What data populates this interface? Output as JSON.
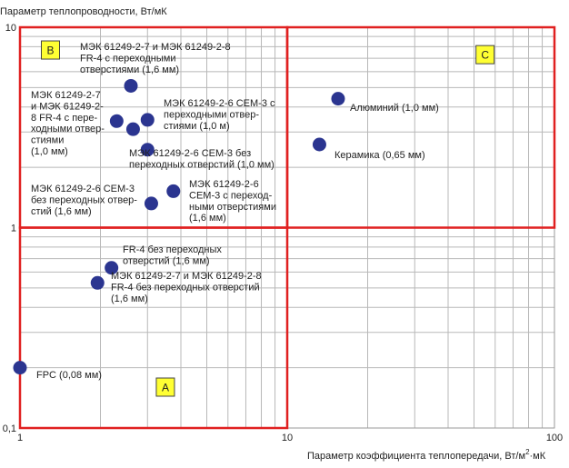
{
  "chart_data": {
    "type": "scatter",
    "title": "",
    "ylabel": "Параметр теплопроводности, Вт/мК",
    "xlabel_prefix": "Параметр коэффициента теплопередачи, Вт/м",
    "xlabel_sup": "2",
    "xlabel_suffix": "·мК",
    "x_scale": "log",
    "y_scale": "log",
    "xlim": [
      1,
      100
    ],
    "ylim": [
      0.1,
      10
    ],
    "grid": true,
    "x_ticks": [
      {
        "value": 1,
        "label": "1"
      },
      {
        "value": 10,
        "label": "10"
      },
      {
        "value": 100,
        "label": "100"
      }
    ],
    "y_ticks": [
      {
        "value": 0.1,
        "label": "0,1"
      },
      {
        "value": 1,
        "label": "1"
      },
      {
        "value": 10,
        "label": "10"
      }
    ],
    "points": [
      {
        "x": 1.0,
        "y": 0.2,
        "label": [
          "FPC (0,08 мм)"
        ],
        "anchor": "right"
      },
      {
        "x": 2.2,
        "y": 0.63,
        "label": [
          "FR-4 без переходных",
          "отверстий (1,6 мм)"
        ],
        "anchor": "right"
      },
      {
        "x": 1.95,
        "y": 0.53,
        "label": [
          "МЭК 61249-2-7 и МЭК 61249-2-8",
          "FR-4 без переходных отверстий",
          "(1,6 мм)"
        ],
        "anchor": "right"
      },
      {
        "x": 2.6,
        "y": 5.1,
        "label": [
          "МЭК 61249-2-7 и МЭК 61249-2-8",
          "FR-4 с переходными",
          "отверстиями (1,6 мм)"
        ],
        "anchor": "above"
      },
      {
        "x": 2.3,
        "y": 3.4,
        "label": [
          "МЭК 61249-2-7",
          "и МЭК 61249-2-",
          "8 FR-4 с пере-",
          "ходными отвер-",
          "стиями",
          "(1,0 мм)"
        ],
        "anchor": "left"
      },
      {
        "x": 2.65,
        "y": 3.1,
        "label": [],
        "anchor": "none"
      },
      {
        "x": 3.0,
        "y": 3.45,
        "label": [
          "МЭК 61249-2-6 CEM-3 с",
          "переходными отвер-",
          "стиями (1,0 м)"
        ],
        "anchor": "right"
      },
      {
        "x": 3.1,
        "y": 1.32,
        "label": [
          "МЭК 61249-2-6 CEM-3",
          "без переходных отвер-",
          "стий (1,6 мм)"
        ],
        "anchor": "left"
      },
      {
        "x": 3.75,
        "y": 1.52,
        "label": [
          "МЭК 61249-2-6",
          "CEM-3 с переход-",
          "ными отверстиями",
          "(1,6 мм)"
        ],
        "anchor": "right"
      },
      {
        "x": 3.0,
        "y": 2.45,
        "label": [
          "МЭК 61249-2-6 CEM-3 без",
          "переходных отверстий (1,0 мм)"
        ],
        "anchor": "above-center"
      },
      {
        "x": 15.5,
        "y": 4.4,
        "label": [
          "Алюминий (1,0 мм)"
        ],
        "anchor": "right"
      },
      {
        "x": 13.2,
        "y": 2.6,
        "label": [
          "Керамика (0,65 мм)"
        ],
        "anchor": "right"
      }
    ],
    "regions": [
      {
        "name": "A",
        "x_range": [
          1,
          10
        ],
        "y_range": [
          0.1,
          1
        ],
        "label_at": [
          3.5,
          0.16
        ]
      },
      {
        "name": "B",
        "x_range": [
          1,
          10
        ],
        "y_range": [
          1,
          10
        ],
        "label_at": [
          1.3,
          7.7
        ]
      },
      {
        "name": "C",
        "x_range": [
          10,
          100
        ],
        "y_range": [
          1,
          10
        ],
        "label_at": [
          55,
          7.3
        ]
      }
    ],
    "colors": {
      "marker": "#2b3590",
      "region_border": "#e02020",
      "box_fill": "#ffff33",
      "grid": "#b8b8b8"
    }
  }
}
